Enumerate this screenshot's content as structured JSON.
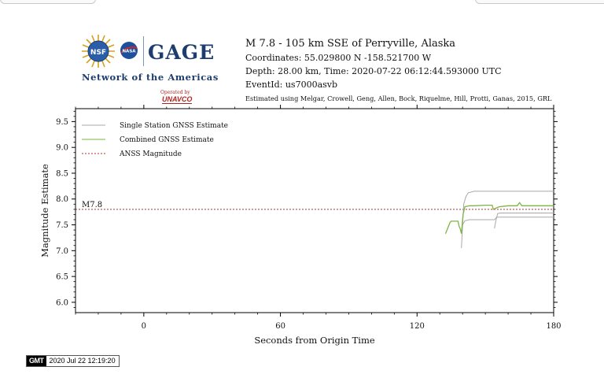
{
  "logos": {
    "nsf": "NSF",
    "nasa": "NASA",
    "gage": "GAGE",
    "network": "Network of the Americas",
    "operated_by": "Operated by",
    "unavco": "UNAVCO"
  },
  "event": {
    "title": "M 7.8 - 105 km SSE of Perryville, Alaska",
    "coordinates": "Coordinates: 55.029800 N -158.521700 W",
    "depth_time": "Depth: 28.00 km, Time: 2020-07-22 06:12:44.593000 UTC",
    "event_id": "EventId: us7000asvb",
    "citation": "Estimated using Melgar, Crowell, Geng, Allen, Bock, Riquelme, Hill, Protti, Ganas, 2015, GRL"
  },
  "chart_data": {
    "type": "line",
    "title": "",
    "xlabel": "Seconds from Origin Time",
    "ylabel": "Magnitude Estimate",
    "xlim": [
      -30,
      180
    ],
    "ylim": [
      5.8,
      9.75
    ],
    "xticks": [
      0,
      60,
      120,
      180
    ],
    "yticks": [
      6.0,
      6.5,
      7.0,
      7.5,
      8.0,
      8.5,
      9.0,
      9.5
    ],
    "ytick_labels": [
      "6.0",
      "6.5",
      "7.0",
      "7.5",
      "8.0",
      "8.5",
      "9.0",
      "9.5"
    ],
    "legend_position": "top-left",
    "grid": false,
    "reference": {
      "name": "ANSS Magnitude",
      "value": 7.8,
      "label": "M7.8",
      "color": "#b03030"
    },
    "series": [
      {
        "name": "Single Station GNSS Estimate",
        "color": "#a8a8a8",
        "lines": [
          {
            "x": [
              139.5,
              140.5,
              141.5,
              142.5,
              145,
              155,
              160,
              170,
              180
            ],
            "y": [
              7.05,
              7.9,
              8.05,
              8.12,
              8.15,
              8.15,
              8.15,
              8.15,
              8.15
            ]
          },
          {
            "x": [
              140,
              141,
              143,
              150,
              154,
              155,
              160,
              170,
              180
            ],
            "y": [
              7.5,
              7.58,
              7.6,
              7.6,
              7.6,
              7.65,
              7.65,
              7.65,
              7.65
            ]
          },
          {
            "x": [
              154,
              154.6,
              155.4,
              157,
              165,
              172,
              180
            ],
            "y": [
              7.43,
              7.58,
              7.72,
              7.73,
              7.73,
              7.73,
              7.73
            ]
          }
        ]
      },
      {
        "name": "Combined GNSS Estimate",
        "color": "#7db545",
        "lines": [
          {
            "x": [
              132.5,
              134.5,
              135,
              138,
              138.5,
              139,
              139.5,
              140.2,
              141,
              143,
              145,
              150,
              153,
              153.5,
              154.5,
              156,
              160,
              164,
              165,
              166,
              170,
              175,
              180
            ],
            "y": [
              7.33,
              7.55,
              7.57,
              7.57,
              7.47,
              7.42,
              7.33,
              7.7,
              7.85,
              7.87,
              7.87,
              7.88,
              7.88,
              7.8,
              7.82,
              7.85,
              7.87,
              7.87,
              7.93,
              7.87,
              7.87,
              7.87,
              7.87
            ]
          }
        ]
      }
    ]
  },
  "footer": {
    "gmt_logo": "GMT",
    "timestamp": "2020 Jul 22 12:19:20"
  }
}
